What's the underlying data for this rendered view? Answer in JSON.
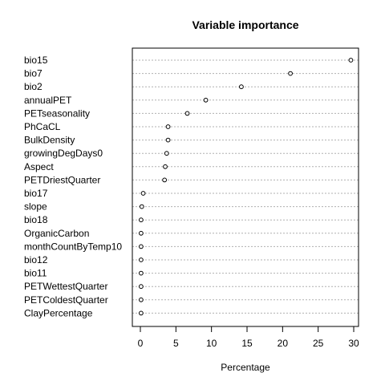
{
  "chart_data": {
    "type": "scatter",
    "title": "Variable importance",
    "xlabel": "Percentage",
    "ylabel": "",
    "xlim": [
      0,
      30
    ],
    "xticks": [
      0,
      5,
      10,
      15,
      20,
      25,
      30
    ],
    "grid": "horizontal dotted",
    "categories": [
      "bio15",
      "bio7",
      "bio2",
      "annualPET",
      "PETseasonality",
      "PhCaCL",
      "BulkDensity",
      "growingDegDays0",
      "Aspect",
      "PETDriestQuarter",
      "bio17",
      "slope",
      "bio18",
      "OrganicCarbon",
      "monthCountByTemp10",
      "bio12",
      "bio11",
      "PETWettestQuarter",
      "PETColdestQuarter",
      "ClayPercentage"
    ],
    "values": [
      29.6,
      21.1,
      14.2,
      9.2,
      6.6,
      3.9,
      3.9,
      3.7,
      3.5,
      3.4,
      0.4,
      0.2,
      0.1,
      0.1,
      0.1,
      0.1,
      0.1,
      0.1,
      0.1,
      0.1
    ]
  }
}
